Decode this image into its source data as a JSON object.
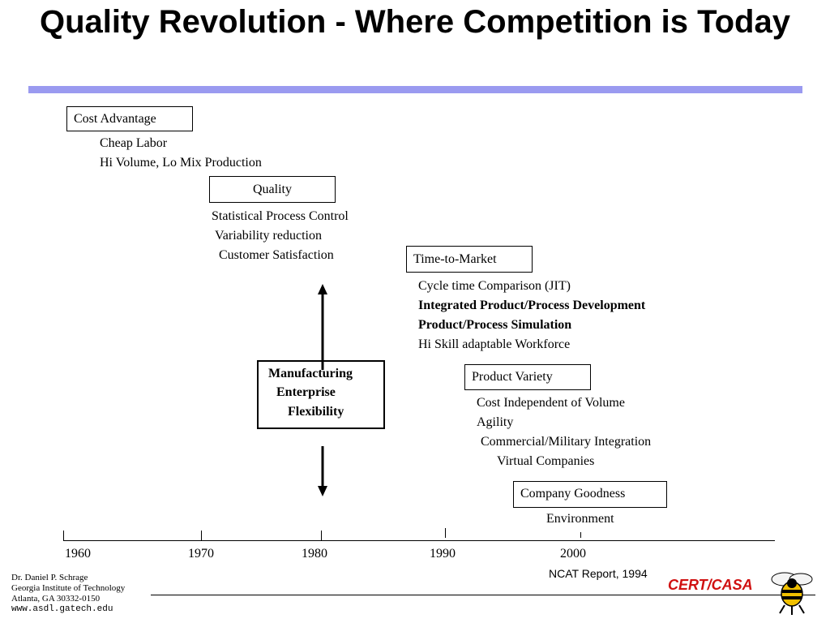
{
  "title": "Quality Revolution - Where Competition is Today",
  "colors": {
    "title_rule": "#9a9af0",
    "cert_text": "#d01010",
    "bee_yellow": "#f0c000"
  },
  "stages": [
    {
      "label": "Cost Advantage",
      "items": [
        "Cheap Labor",
        "Hi Volume, Lo Mix Production"
      ]
    },
    {
      "label": "Quality",
      "items": [
        "Statistical Process Control",
        "Variability reduction",
        "Customer Satisfaction"
      ]
    },
    {
      "label": "Time-to-Market",
      "items": [
        "Cycle time Comparison (JIT)",
        "Integrated Product/Process Development",
        "Product/Process Simulation",
        "Hi Skill adaptable Workforce"
      ]
    },
    {
      "label": "Product Variety",
      "items": [
        "Cost Independent of Volume",
        "Agility",
        "Commercial/Military Integration",
        "Virtual Companies"
      ]
    },
    {
      "label": "Company Goodness",
      "items": [
        "Environment"
      ]
    }
  ],
  "center": {
    "line1": "Manufacturing",
    "line2": "Enterprise",
    "line3": "Flexibility"
  },
  "timeline": {
    "years": [
      "1960",
      "1970",
      "1980",
      "1990",
      "2000"
    ]
  },
  "source": "NCAT Report, 1994",
  "footer": {
    "name": "Dr. Daniel P. Schrage",
    "org": "Georgia Institute of Technology",
    "addr": "Atlanta, GA  30332-0150",
    "url": "www.asdl.gatech.edu"
  },
  "logo": {
    "text": "CERT/CASA",
    "icon": "yellow-jacket-bee-icon"
  }
}
